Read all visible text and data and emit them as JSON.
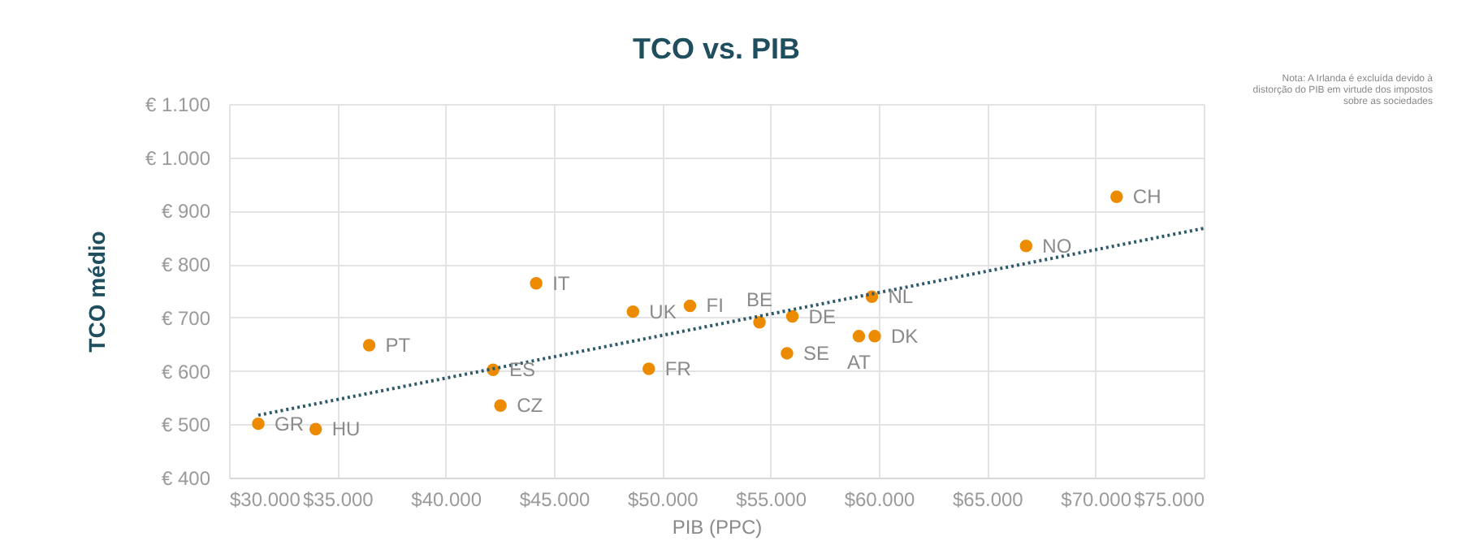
{
  "chart_data": {
    "type": "scatter",
    "title": "TCO vs. PIB",
    "xlabel": "PIB (PPC)",
    "ylabel": "TCO médio",
    "xlim": [
      30000,
      75000
    ],
    "ylim": [
      400,
      1100
    ],
    "xticks": [
      {
        "value": 30000,
        "label": "$30.000"
      },
      {
        "value": 35000,
        "label": "$35.000"
      },
      {
        "value": 40000,
        "label": "$40.000"
      },
      {
        "value": 45000,
        "label": "$45.000"
      },
      {
        "value": 50000,
        "label": "$50.000"
      },
      {
        "value": 55000,
        "label": "$55.000"
      },
      {
        "value": 60000,
        "label": "$60.000"
      },
      {
        "value": 65000,
        "label": "$65.000"
      },
      {
        "value": 70000,
        "label": "$70.000"
      },
      {
        "value": 75000,
        "label": "$75.000"
      }
    ],
    "yticks": [
      {
        "value": 400,
        "label": "€ 400"
      },
      {
        "value": 500,
        "label": "€ 500"
      },
      {
        "value": 600,
        "label": "€ 600"
      },
      {
        "value": 700,
        "label": "€ 700"
      },
      {
        "value": 800,
        "label": "€ 800"
      },
      {
        "value": 900,
        "label": "€ 900"
      },
      {
        "value": 1000,
        "label": "€ 1.000"
      },
      {
        "value": 1100,
        "label": "€ 1.100"
      }
    ],
    "grid": true,
    "marker": "circle",
    "series": [
      {
        "type": "scatter",
        "color": "#ed8b00",
        "x": [
          31350,
          34000,
          36470,
          44180,
          42190,
          42530,
          48650,
          51280,
          49380,
          54490,
          56010,
          55760,
          59680,
          59080,
          59810,
          66800,
          70980
        ],
        "values": [
          501,
          491,
          648,
          764,
          602,
          535,
          711,
          722,
          604,
          691,
          702,
          633,
          739,
          665,
          665,
          834,
          926
        ]
      },
      {
        "type": "line",
        "color": "#2e5a6b",
        "line_style": "dotted",
        "marker": "none",
        "x": [
          31350,
          75000
        ],
        "values": [
          517,
          867
        ]
      }
    ],
    "annotations": [
      "Nota: A Irlanda é excluída devido à distorção do PIB em virtude dos impostos sobre as sociedades",
      {
        "text": "GR",
        "x": 31350,
        "y": 501
      },
      {
        "text": "HU",
        "x": 34000,
        "y": 491
      },
      {
        "text": "PT",
        "x": 36470,
        "y": 648
      },
      {
        "text": "IT",
        "x": 44180,
        "y": 764
      },
      {
        "text": "ES",
        "x": 42190,
        "y": 602
      },
      {
        "text": "CZ",
        "x": 42530,
        "y": 535
      },
      {
        "text": "UK",
        "x": 48650,
        "y": 711
      },
      {
        "text": "FI",
        "x": 51280,
        "y": 722
      },
      {
        "text": "FR",
        "x": 49380,
        "y": 604
      },
      {
        "text": "BE",
        "x": 54490,
        "y": 691
      },
      {
        "text": "DE",
        "x": 56010,
        "y": 702
      },
      {
        "text": "SE",
        "x": 55760,
        "y": 633
      },
      {
        "text": "NL",
        "x": 59680,
        "y": 739
      },
      {
        "text": "AT",
        "x": 59080,
        "y": 665
      },
      {
        "text": "DK",
        "x": 59810,
        "y": 665
      },
      {
        "text": "NO",
        "x": 66800,
        "y": 834
      },
      {
        "text": "CH",
        "x": 70980,
        "y": 926
      }
    ]
  }
}
